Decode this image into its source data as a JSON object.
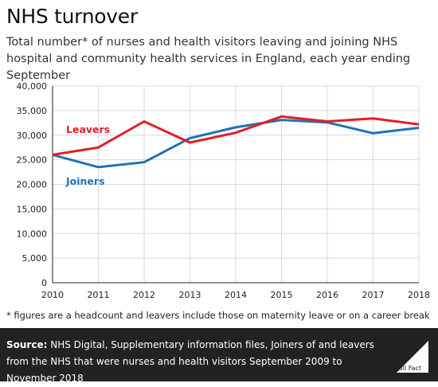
{
  "title": "NHS turnover",
  "subtitle": "Total number* of nurses and health visitors leaving and joining NHS hospital and community health services in England, each year ending September",
  "footnote": "* figures are a headcount and leavers include those on maternity leave or on a career break",
  "source": {
    "label": "Source:",
    "text": "NHS Digital, Supplementary information files, Joiners of and leavers from the NHS that were nurses and health visitors September 2009 to November 2018"
  },
  "logo": {
    "text": "Full Fact",
    "icon": "full-fact-logo-icon"
  },
  "colors": {
    "leavers": "#e31e26",
    "joiners": "#1f73b7",
    "grid": "#d9d9d9",
    "footer_bg": "#222222"
  },
  "chart_data": {
    "type": "line",
    "title": "",
    "xlabel": "",
    "ylabel": "",
    "x": [
      2010,
      2011,
      2012,
      2013,
      2014,
      2015,
      2016,
      2017,
      2018
    ],
    "ylim": [
      0,
      40000
    ],
    "yticks": [
      0,
      5000,
      10000,
      15000,
      20000,
      25000,
      30000,
      35000,
      40000
    ],
    "ytick_labels": [
      "0",
      "5,000",
      "10,000",
      "15,000",
      "20,000",
      "25,000",
      "30,000",
      "35,000",
      "40,000"
    ],
    "grid": true,
    "series": [
      {
        "name": "Leavers",
        "color": "#e31e26",
        "values": [
          26000,
          27500,
          32800,
          28500,
          30500,
          33800,
          32800,
          33400,
          32200
        ]
      },
      {
        "name": "Joiners",
        "color": "#1f73b7",
        "values": [
          26000,
          23500,
          24500,
          29400,
          31600,
          33100,
          32600,
          30400,
          31500
        ]
      }
    ]
  }
}
